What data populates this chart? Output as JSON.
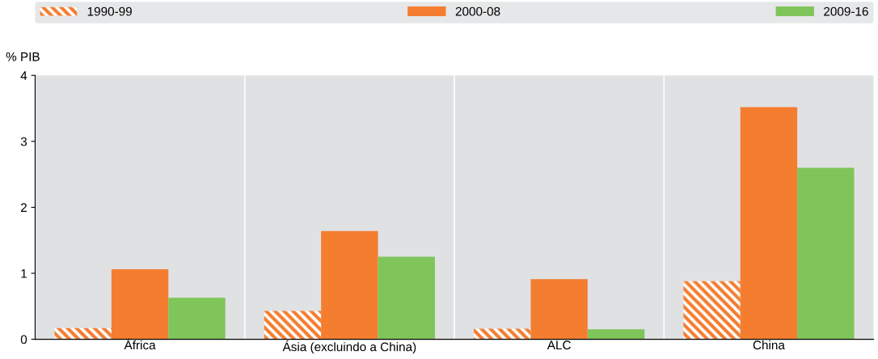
{
  "chart_data": {
    "type": "bar",
    "ylabel": "% PIB",
    "categories": [
      "África",
      "Ásia (excluindo a China)",
      "ALC",
      "China"
    ],
    "series": [
      {
        "name": "1990-99",
        "color": "#f47d30",
        "values": [
          0.17,
          0.43,
          0.16,
          0.88
        ]
      },
      {
        "name": "2000-08",
        "color": "#f47d30",
        "values": [
          1.06,
          1.64,
          0.91,
          3.52
        ]
      },
      {
        "name": "2009-16",
        "color": "#7fc55a",
        "values": [
          0.63,
          1.25,
          0.15,
          2.6
        ]
      }
    ],
    "ylim": [
      0,
      4
    ],
    "yticks": [
      0,
      1,
      2,
      3,
      4
    ],
    "grid": false,
    "legend": "top"
  }
}
